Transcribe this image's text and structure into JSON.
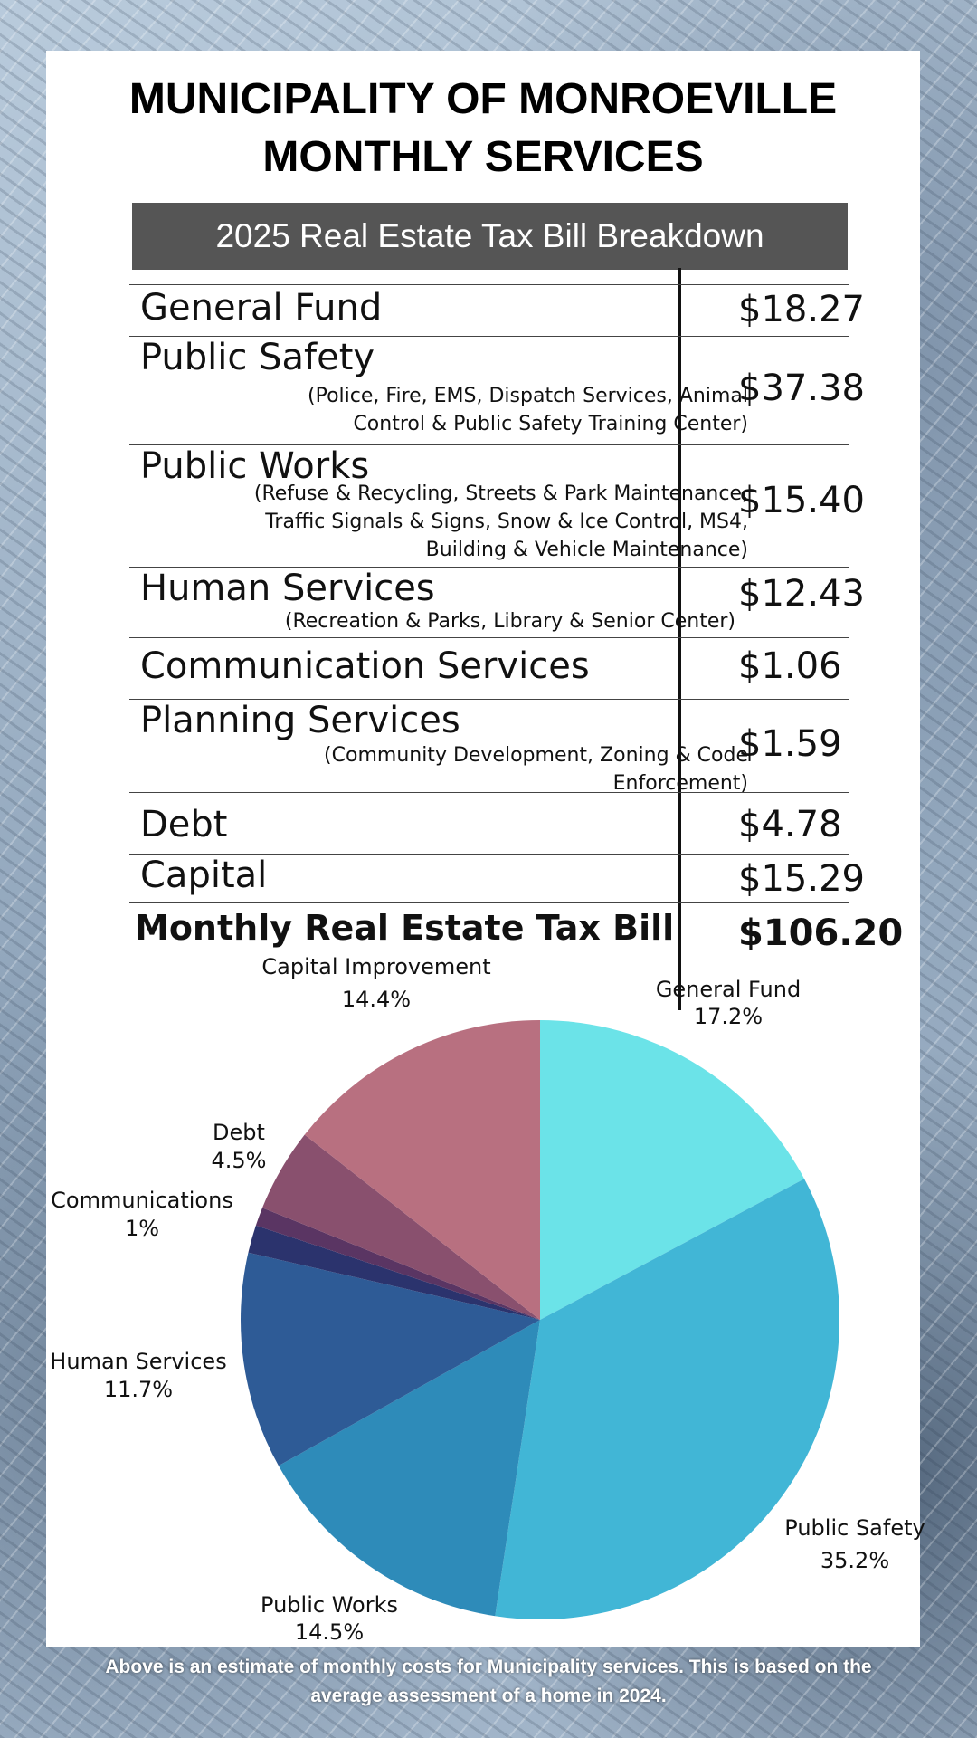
{
  "title": {
    "line1": "MUNICIPALITY OF MONROEVILLE",
    "line2": "MONTHLY SERVICES"
  },
  "banner": "2025 Real Estate Tax Bill Breakdown",
  "rows": [
    {
      "label": "General Fund",
      "sub": "",
      "value": "$18.27"
    },
    {
      "label": "Public Safety",
      "sub": "(Police, Fire, EMS, Dispatch Services, Animal Control & Public Safety Training Center)",
      "value": "$37.38"
    },
    {
      "label": "Public Works",
      "sub": "(Refuse & Recycling, Streets & Park Maintenance, Traffic Signals & Signs, Snow & Ice Control, MS4, Building & Vehicle Maintenance)",
      "value": "$15.40"
    },
    {
      "label": "Human Services",
      "sub": "(Recreation & Parks, Library & Senior Center)",
      "value": "$12.43"
    },
    {
      "label": "Communication Services",
      "sub": "",
      "value": "$1.06"
    },
    {
      "label": "Planning Services",
      "sub": "(Community Development, Zoning & Code Enforcement)",
      "value": "$1.59"
    },
    {
      "label": "Debt",
      "sub": "",
      "value": "$4.78"
    },
    {
      "label": "Capital",
      "sub": "",
      "value": "$15.29"
    }
  ],
  "total": {
    "label": "Monthly Real Estate Tax Bill",
    "value": "$106.20"
  },
  "chart_data": {
    "type": "pie",
    "title": "",
    "slices": [
      {
        "name": "General Fund",
        "value": 17.2,
        "label": "17.2%",
        "color": "#6be3e8"
      },
      {
        "name": "Public Safety",
        "value": 35.2,
        "label": "35.2%",
        "color": "#41b6d6"
      },
      {
        "name": "Public Works",
        "value": 14.5,
        "label": "14.5%",
        "color": "#2e8bb9"
      },
      {
        "name": "Human Services",
        "value": 11.7,
        "label": "11.7%",
        "color": "#2e5b96"
      },
      {
        "name": "Planning Services",
        "value": 1.5,
        "label": "",
        "color": "#2b336d"
      },
      {
        "name": "Communications",
        "value": 1.0,
        "label": "1%",
        "color": "#5a3563"
      },
      {
        "name": "Debt",
        "value": 4.5,
        "label": "4.5%",
        "color": "#89506e"
      },
      {
        "name": "Capital Improvement",
        "value": 14.4,
        "label": "14.4%",
        "color": "#b87080"
      }
    ]
  },
  "footnote": {
    "line1": "Above is an estimate of monthly costs for Municipality services.  This is based on the",
    "line2": "average assessment of a home in 2024."
  }
}
